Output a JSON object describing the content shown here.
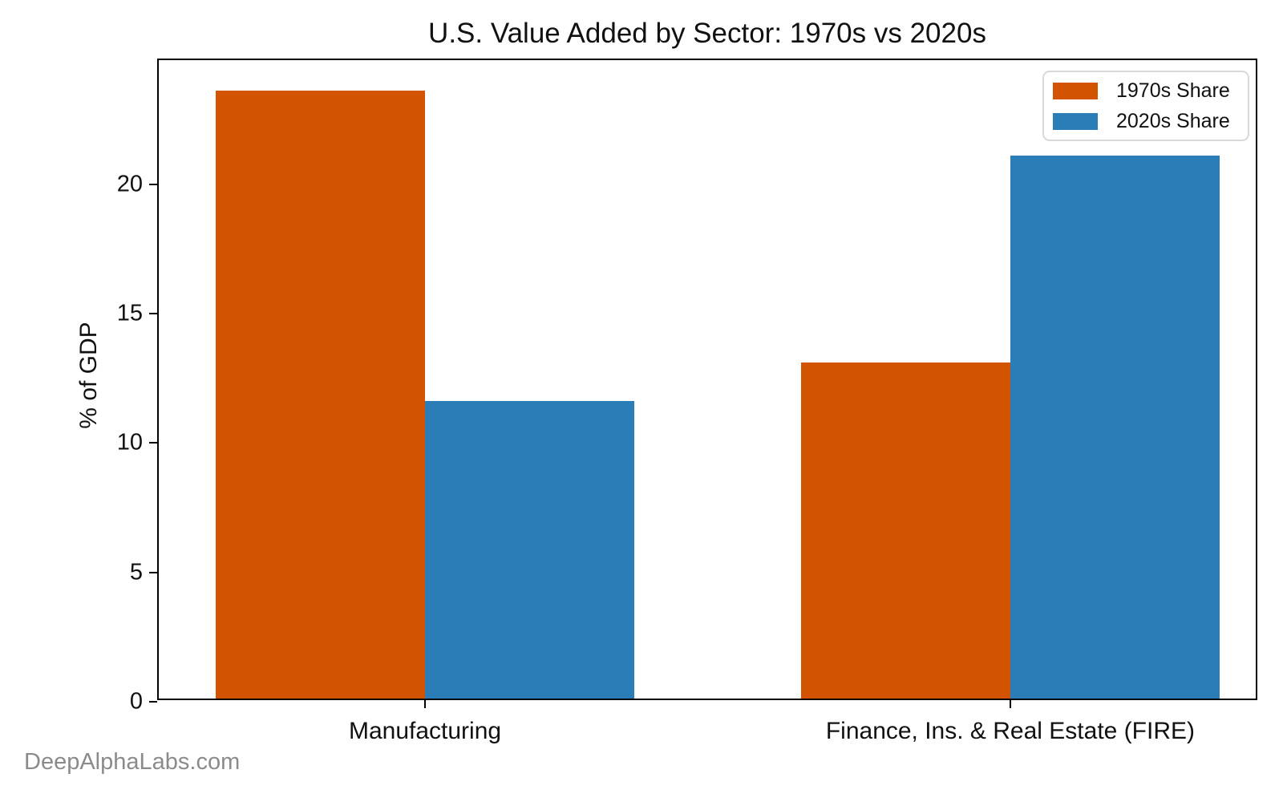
{
  "title": "U.S. Value Added by Sector: 1970s vs 2020s",
  "watermark": "DeepAlphaLabs.com",
  "chart_data": {
    "type": "bar",
    "title": "U.S. Value Added by Sector: 1970s vs 2020s",
    "categories": [
      "Manufacturing",
      "Finance, Ins. & Real Estate (FIRE)"
    ],
    "series": [
      {
        "name": "1970s Share",
        "color": "#d35400",
        "values": [
          23.5,
          13.0
        ]
      },
      {
        "name": "2020s Share",
        "color": "#2b7db8",
        "values": [
          11.5,
          21.0
        ]
      }
    ],
    "xlabel": "",
    "ylabel": "% of GDP",
    "ylim": [
      0,
      24.8
    ],
    "yticks": [
      0,
      5,
      10,
      15,
      20
    ],
    "grid": false,
    "legend_position": "upper right"
  }
}
